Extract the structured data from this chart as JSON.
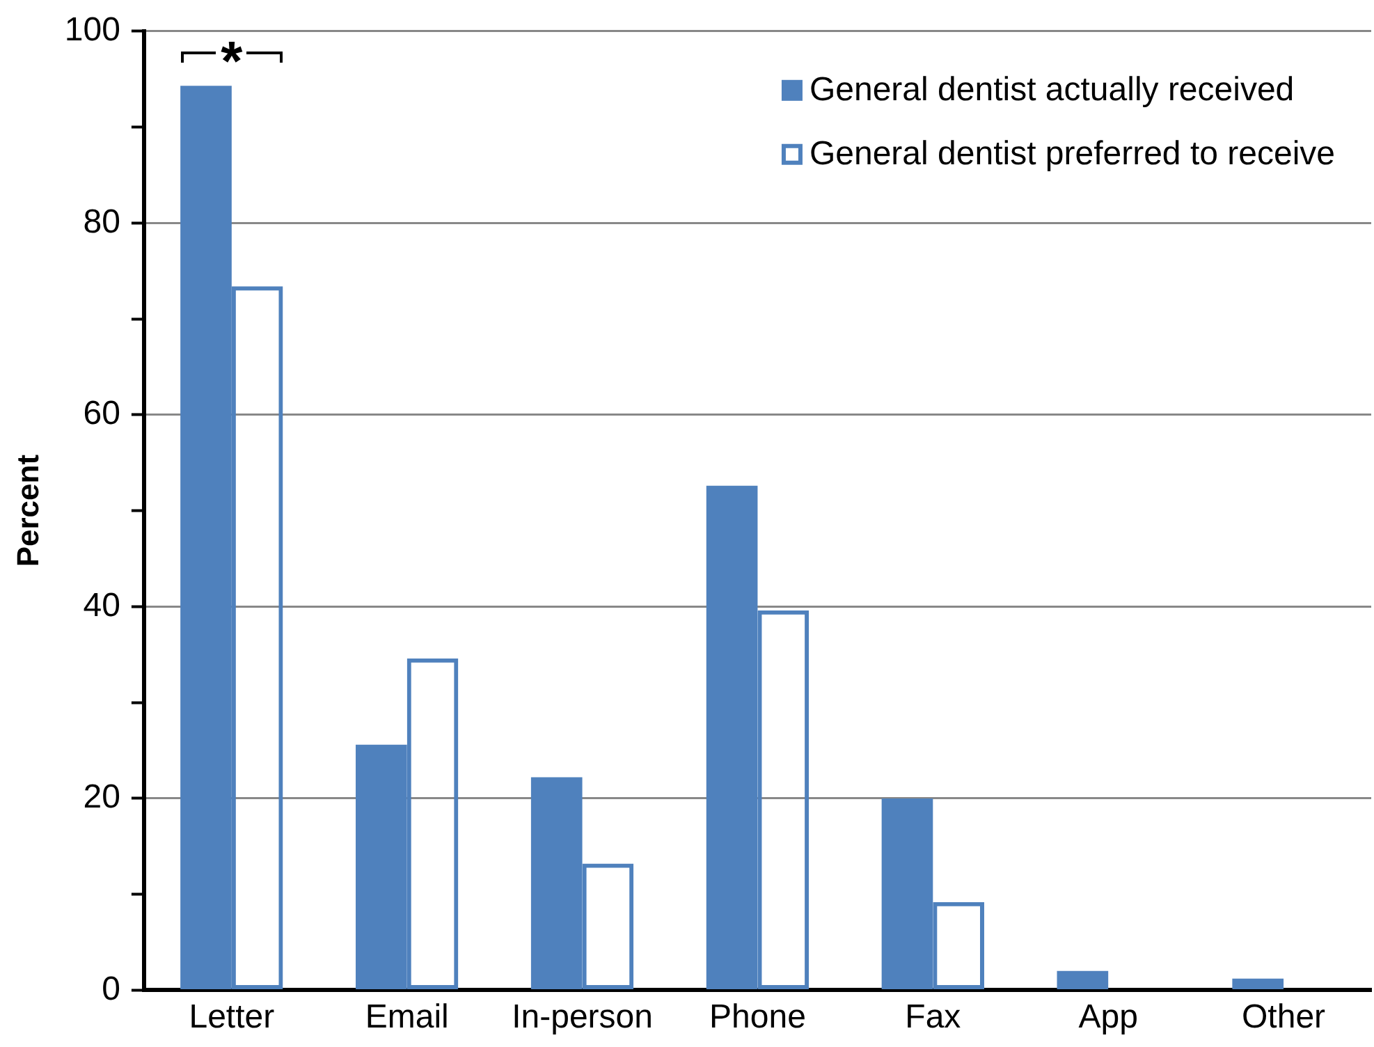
{
  "chart_data": {
    "type": "bar",
    "ylabel": "Percent",
    "categories": [
      "Letter",
      "Email",
      "In-person",
      "Phone",
      "Fax",
      "App",
      "Other"
    ],
    "series": [
      {
        "name": "General dentist actually received",
        "color": "#4f81bd",
        "values": [
          94.3,
          25.6,
          22.2,
          52.6,
          20.0,
          2.0,
          1.2
        ]
      },
      {
        "name": "General dentist preferred to receive",
        "color": "#4f81bd",
        "values": [
          73.4,
          34.6,
          13.2,
          39.6,
          9.2,
          0,
          0
        ]
      }
    ],
    "ylim": [
      0,
      100
    ],
    "yticks": [
      0,
      {
        "value": 10,
        "label": null
      },
      20,
      {
        "value": 30,
        "label": null
      },
      40,
      {
        "value": 50,
        "label": null
      },
      60,
      {
        "value": 70,
        "label": null
      },
      80,
      {
        "value": 90,
        "label": null
      },
      100
    ],
    "grid": "y",
    "legend": "top right",
    "annotations": [
      "*"
    ]
  }
}
